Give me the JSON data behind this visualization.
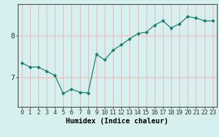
{
  "xlabel": "Humidex (Indice chaleur)",
  "x_values": [
    0,
    1,
    2,
    3,
    4,
    5,
    6,
    7,
    8,
    9,
    10,
    11,
    12,
    13,
    14,
    15,
    16,
    17,
    18,
    19,
    20,
    21,
    22,
    23
  ],
  "y_values": [
    7.35,
    7.25,
    7.25,
    7.15,
    7.05,
    6.62,
    6.72,
    6.65,
    6.63,
    7.55,
    7.42,
    7.65,
    7.78,
    7.92,
    8.05,
    8.08,
    8.25,
    8.35,
    8.18,
    8.28,
    8.45,
    8.42,
    8.35,
    8.35
  ],
  "line_color": "#1a7a6e",
  "marker": "D",
  "marker_size": 2.5,
  "bg_color": "#d6f0f0",
  "grid_color": "#f0b8b8",
  "ylim": [
    6.3,
    8.75
  ],
  "yticks": [
    7,
    8
  ],
  "xtick_labels": [
    "0",
    "1",
    "2",
    "3",
    "4",
    "5",
    "6",
    "7",
    "8",
    "9",
    "10",
    "11",
    "12",
    "13",
    "14",
    "15",
    "16",
    "17",
    "18",
    "19",
    "20",
    "21",
    "22",
    "23"
  ],
  "xlabel_fontsize": 7.5,
  "tick_fontsize": 6.5
}
